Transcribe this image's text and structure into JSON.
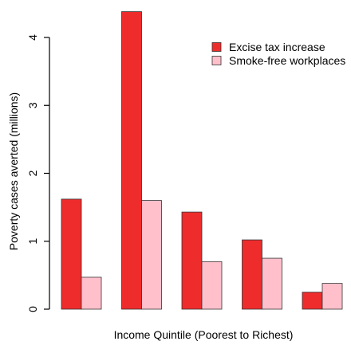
{
  "chart_data": {
    "type": "bar",
    "title": "",
    "xlabel": "Income Quintile (Poorest to Richest)",
    "ylabel": "Poverty cases averted (millions)",
    "categories": [
      "",
      "",
      "",
      "",
      ""
    ],
    "ylim": [
      0,
      4
    ],
    "yticks": [
      "0",
      "1",
      "2",
      "3",
      "4"
    ],
    "grid": false,
    "legend_position": "top-right",
    "series": [
      {
        "name": "Excise tax increase",
        "color": "#ee2c2c",
        "values": [
          1.62,
          4.38,
          1.43,
          1.02,
          0.25
        ]
      },
      {
        "name": "Smoke-free workplaces",
        "color": "#ffc0cb",
        "values": [
          0.47,
          1.6,
          0.7,
          0.75,
          0.38
        ]
      }
    ]
  }
}
